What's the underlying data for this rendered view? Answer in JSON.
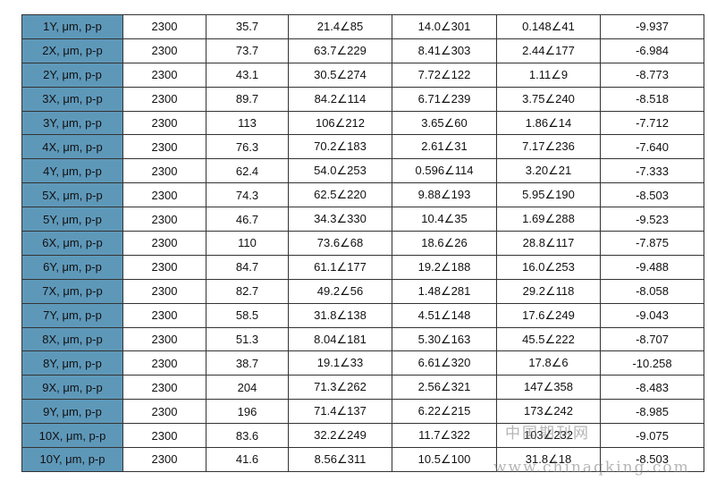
{
  "table": {
    "rows": [
      [
        "1Y, μm, p-p",
        "2300",
        "35.7",
        "21.4∠85",
        "14.0∠301",
        "0.148∠41",
        "-9.937"
      ],
      [
        "2X, μm, p-p",
        "2300",
        "73.7",
        "63.7∠229",
        "8.41∠303",
        "2.44∠177",
        "-6.984"
      ],
      [
        "2Y, μm, p-p",
        "2300",
        "43.1",
        "30.5∠274",
        "7.72∠122",
        "1.11∠9",
        "-8.773"
      ],
      [
        "3X, μm, p-p",
        "2300",
        "89.7",
        "84.2∠114",
        "6.71∠239",
        "3.75∠240",
        "-8.518"
      ],
      [
        "3Y, μm, p-p",
        "2300",
        "113",
        "106∠212",
        "3.65∠60",
        "1.86∠14",
        "-7.712"
      ],
      [
        "4X, μm, p-p",
        "2300",
        "76.3",
        "70.2∠183",
        "2.61∠31",
        "7.17∠236",
        "-7.640"
      ],
      [
        "4Y, μm, p-p",
        "2300",
        "62.4",
        "54.0∠253",
        "0.596∠114",
        "3.20∠21",
        "-7.333"
      ],
      [
        "5X, μm, p-p",
        "2300",
        "74.3",
        "62.5∠220",
        "9.88∠193",
        "5.95∠190",
        "-8.503"
      ],
      [
        "5Y, μm, p-p",
        "2300",
        "46.7",
        "34.3∠330",
        "10.4∠35",
        "1.69∠288",
        "-9.523"
      ],
      [
        "6X, μm, p-p",
        "2300",
        "110",
        "73.6∠68",
        "18.6∠26",
        "28.8∠117",
        "-7.875"
      ],
      [
        "6Y, μm, p-p",
        "2300",
        "84.7",
        "61.1∠177",
        "19.2∠188",
        "16.0∠253",
        "-9.488"
      ],
      [
        "7X, μm, p-p",
        "2300",
        "82.7",
        "49.2∠56",
        "1.48∠281",
        "29.2∠118",
        "-8.058"
      ],
      [
        "7Y, μm, p-p",
        "2300",
        "58.5",
        "31.8∠138",
        "4.51∠148",
        "17.6∠249",
        "-9.043"
      ],
      [
        "8X, μm, p-p",
        "2300",
        "51.3",
        "8.04∠181",
        "5.30∠163",
        "45.5∠222",
        "-8.707"
      ],
      [
        "8Y, μm, p-p",
        "2300",
        "38.7",
        "19.1∠33",
        "6.61∠320",
        "17.8∠6",
        "-10.258"
      ],
      [
        "9X, μm, p-p",
        "2300",
        "204",
        "71.3∠262",
        "2.56∠321",
        "147∠358",
        "-8.483"
      ],
      [
        "9Y, μm, p-p",
        "2300",
        "196",
        "71.4∠137",
        "6.22∠215",
        "173∠242",
        "-8.985"
      ],
      [
        "10X, μm, p-p",
        "2300",
        "83.6",
        "32.2∠249",
        "11.7∠322",
        "103∠232",
        "-9.075"
      ],
      [
        "10Y, μm, p-p",
        "2300",
        "41.6",
        "8.56∠311",
        "10.5∠100",
        "31.8∠18",
        "-8.503"
      ]
    ]
  },
  "watermark": {
    "line1": "中国期刊网",
    "line2": "www.chinaqking.com"
  }
}
